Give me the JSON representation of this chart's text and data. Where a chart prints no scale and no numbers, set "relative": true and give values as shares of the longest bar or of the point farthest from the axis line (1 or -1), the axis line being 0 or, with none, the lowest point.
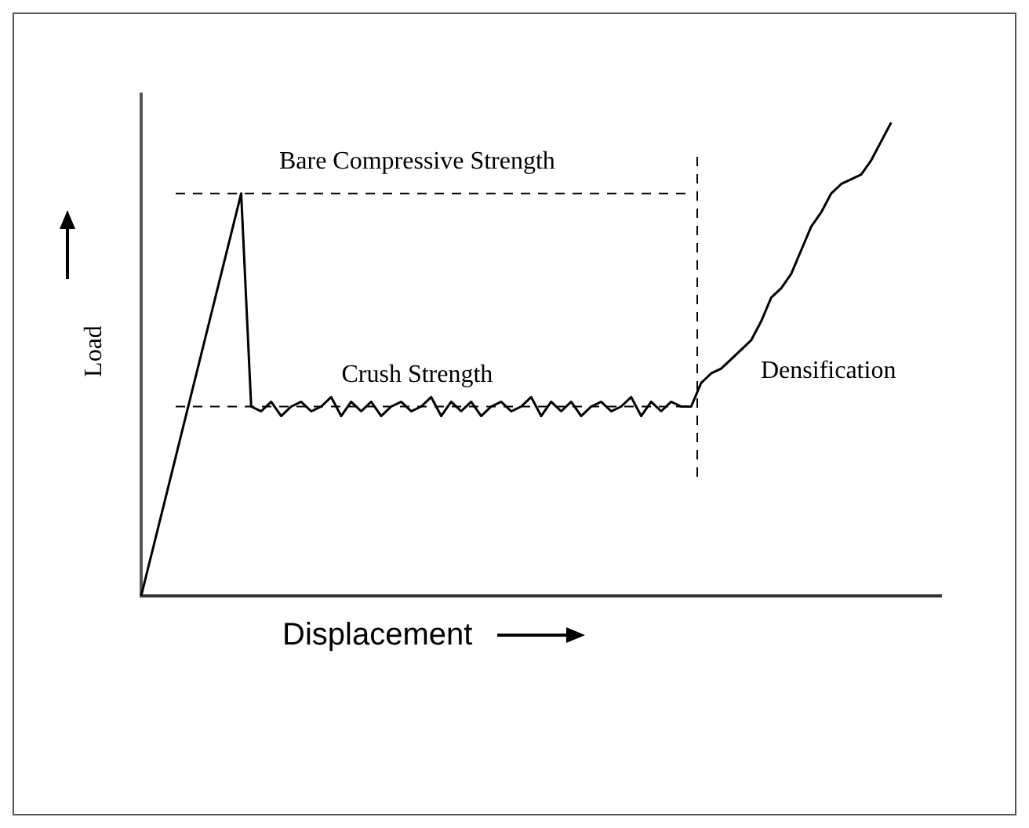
{
  "chart_data": {
    "type": "line",
    "relative": true,
    "xlabel": "Displacement",
    "ylabel": "Load",
    "tick_labels": false,
    "grid": false,
    "legend": false,
    "marker": "none",
    "categories": [
      null,
      null,
      null,
      null,
      null,
      null,
      null,
      null,
      null,
      null,
      null,
      null,
      null,
      null,
      null,
      null,
      null,
      null,
      null,
      null,
      null,
      null,
      null,
      null,
      null,
      null,
      null,
      null,
      null,
      null,
      null,
      null,
      null,
      null,
      null,
      null,
      null,
      null,
      null,
      null,
      null,
      null,
      null,
      null,
      null,
      null,
      null,
      null,
      null,
      null,
      null,
      null,
      null,
      null,
      null,
      null,
      null,
      null,
      null,
      null,
      null,
      null,
      null,
      null,
      null,
      null,
      null,
      null,
      null,
      null,
      null,
      null,
      null,
      null,
      null,
      null,
      null,
      null,
      null,
      null,
      null
    ],
    "series": [
      {
        "color": "#000000",
        "values": [
          0,
          0.085,
          0.17,
          0.255,
          0.34,
          0.425,
          0.51,
          0.595,
          0.68,
          0.765,
          0.85,
          0.4,
          0.39,
          0.41,
          0.38,
          0.4,
          0.41,
          0.39,
          0.4,
          0.42,
          0.38,
          0.41,
          0.39,
          0.41,
          0.38,
          0.4,
          0.41,
          0.39,
          0.4,
          0.42,
          0.38,
          0.41,
          0.39,
          0.41,
          0.38,
          0.4,
          0.41,
          0.39,
          0.4,
          0.42,
          0.38,
          0.41,
          0.39,
          0.41,
          0.38,
          0.4,
          0.41,
          0.39,
          0.4,
          0.42,
          0.38,
          0.41,
          0.39,
          0.41,
          0.4,
          0.4,
          0.45,
          0.47,
          0.48,
          0.5,
          0.52,
          0.54,
          0.58,
          0.63,
          0.65,
          0.68,
          0.73,
          0.78,
          0.81,
          0.85,
          0.87,
          0.88,
          0.89,
          0.92,
          0.96,
          1,
          null,
          null,
          null,
          null,
          null
        ]
      }
    ],
    "ref_lines": [
      {
        "axis": "y",
        "value": 0.85,
        "label": "Bare Compressive Strength",
        "line_style": "dashed"
      },
      {
        "axis": "y",
        "value": 0.4,
        "label": "Crush Strength",
        "line_style": "dashed"
      }
    ],
    "annotations": [
      "Densification"
    ]
  }
}
